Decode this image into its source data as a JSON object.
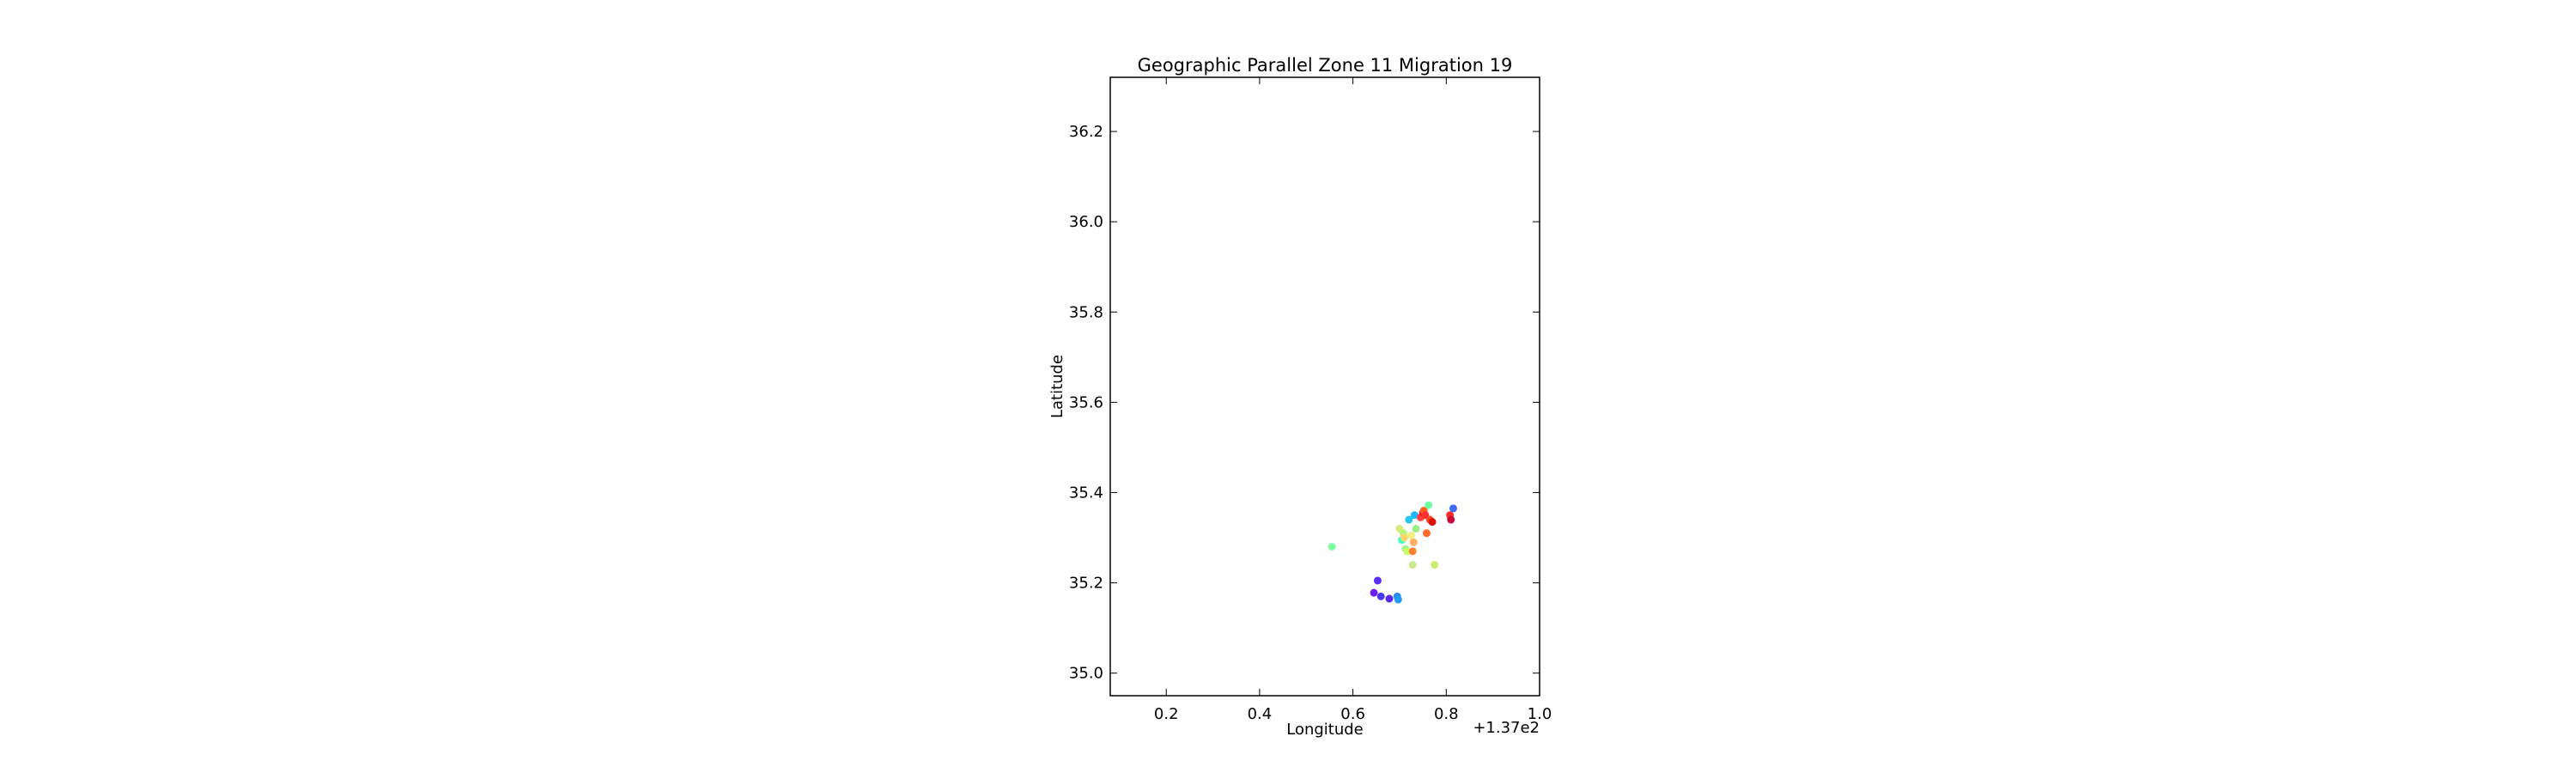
{
  "chart_data": {
    "type": "scatter",
    "title": "Geographic Parallel Zone 11 Migration 19",
    "xlabel": "Longitude",
    "ylabel": "Latitude",
    "x_offset_label": "+1.37e2",
    "xlim": [
      0.08,
      1.0
    ],
    "ylim": [
      34.95,
      36.32
    ],
    "x_ticks": [
      0.2,
      0.4,
      0.6,
      0.8,
      1.0
    ],
    "x_tick_labels": [
      "0.2",
      "0.4",
      "0.6",
      "0.8",
      "1.0"
    ],
    "y_ticks": [
      35.0,
      35.2,
      35.4,
      35.6,
      35.8,
      36.0,
      36.2
    ],
    "y_tick_labels": [
      "35.0",
      "35.2",
      "35.4",
      "35.6",
      "35.8",
      "36.0",
      "36.2"
    ],
    "grid": false,
    "legend": "none",
    "points": [
      {
        "x": 0.555,
        "y": 35.28,
        "color": "#7dffa0"
      },
      {
        "x": 0.653,
        "y": 35.205,
        "color": "#5a2cf5"
      },
      {
        "x": 0.645,
        "y": 35.178,
        "color": "#6a20f0"
      },
      {
        "x": 0.66,
        "y": 35.17,
        "color": "#4a3af5"
      },
      {
        "x": 0.678,
        "y": 35.165,
        "color": "#5a2ae8"
      },
      {
        "x": 0.695,
        "y": 35.17,
        "color": "#2b8cf8"
      },
      {
        "x": 0.697,
        "y": 35.163,
        "color": "#1f9df5"
      },
      {
        "x": 0.7,
        "y": 35.32,
        "color": "#d7ec7a"
      },
      {
        "x": 0.705,
        "y": 35.295,
        "color": "#3cffc8"
      },
      {
        "x": 0.708,
        "y": 35.31,
        "color": "#b5f57a"
      },
      {
        "x": 0.71,
        "y": 35.3,
        "color": "#ffd56a"
      },
      {
        "x": 0.713,
        "y": 35.275,
        "color": "#a7f58a"
      },
      {
        "x": 0.716,
        "y": 35.27,
        "color": "#c6ff6a"
      },
      {
        "x": 0.72,
        "y": 35.34,
        "color": "#20c8f0"
      },
      {
        "x": 0.725,
        "y": 35.305,
        "color": "#f0f080"
      },
      {
        "x": 0.728,
        "y": 35.27,
        "color": "#ff8030"
      },
      {
        "x": 0.73,
        "y": 35.29,
        "color": "#ffb060"
      },
      {
        "x": 0.732,
        "y": 35.35,
        "color": "#20b8ff"
      },
      {
        "x": 0.735,
        "y": 35.32,
        "color": "#9cf08c"
      },
      {
        "x": 0.728,
        "y": 35.24,
        "color": "#c8ea90"
      },
      {
        "x": 0.745,
        "y": 35.345,
        "color": "#ff4040"
      },
      {
        "x": 0.75,
        "y": 35.355,
        "color": "#e02020"
      },
      {
        "x": 0.752,
        "y": 35.36,
        "color": "#ff6020"
      },
      {
        "x": 0.755,
        "y": 35.35,
        "color": "#ff3030"
      },
      {
        "x": 0.758,
        "y": 35.31,
        "color": "#ff6a2a"
      },
      {
        "x": 0.762,
        "y": 35.372,
        "color": "#70ffa0"
      },
      {
        "x": 0.765,
        "y": 35.34,
        "color": "#ff4a20"
      },
      {
        "x": 0.77,
        "y": 35.335,
        "color": "#dd1010"
      },
      {
        "x": 0.775,
        "y": 35.24,
        "color": "#c8ec70"
      },
      {
        "x": 0.808,
        "y": 35.35,
        "color": "#ff2a2a"
      },
      {
        "x": 0.81,
        "y": 35.34,
        "color": "#cc0a3a"
      },
      {
        "x": 0.815,
        "y": 35.365,
        "color": "#3a6cf5"
      }
    ]
  }
}
